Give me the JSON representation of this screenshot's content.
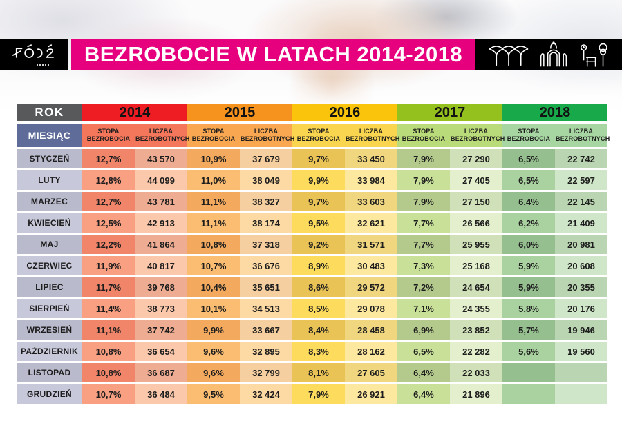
{
  "header": {
    "logo_text": "ŁÓDŹ",
    "title": "BEZROBOCIE W LATACH 2014-2018",
    "landmark_icons": [
      "station-canopy-icon",
      "gate-icon",
      "park-icon"
    ]
  },
  "colors": {
    "banner_pink": "#e6007e",
    "year_2014": "#ee1c23",
    "year_2015": "#f6921e",
    "year_2016": "#f9c40b",
    "year_2017": "#95c11f",
    "year_2018": "#18a94b",
    "rok_header_bg": "#58595b",
    "miesiac_header_bg": "#5f6c9a"
  },
  "chart_data": {
    "type": "table",
    "title": "BEZROBOCIE W LATACH 2014-2018",
    "corner_label": "ROK",
    "month_header": "MIESIĄC",
    "years": [
      "2014",
      "2015",
      "2016",
      "2017",
      "2018"
    ],
    "subcolumns": [
      "STOPA BEZROBOCIA",
      "LICZBA BEZROBOTNYCH"
    ],
    "rows": [
      {
        "month": "STYCZEŃ",
        "cells": [
          "12,7%",
          "43 570",
          "10,9%",
          "37 679",
          "9,7%",
          "33 450",
          "7,9%",
          "27 290",
          "6,5%",
          "22 742"
        ]
      },
      {
        "month": "LUTY",
        "cells": [
          "12,8%",
          "44 099",
          "11,0%",
          "38 049",
          "9,9%",
          "33 984",
          "7,9%",
          "27 405",
          "6,5%",
          "22 597"
        ]
      },
      {
        "month": "MARZEC",
        "cells": [
          "12,7%",
          "43 781",
          "11,1%",
          "38 327",
          "9,7%",
          "33 603",
          "7,9%",
          "27 150",
          "6,4%",
          "22 145"
        ]
      },
      {
        "month": "KWIECIEŃ",
        "cells": [
          "12,5%",
          "42 913",
          "11,1%",
          "38 174",
          "9,5%",
          "32 621",
          "7,7%",
          "26 566",
          "6,2%",
          "21 409"
        ]
      },
      {
        "month": "MAJ",
        "cells": [
          "12,2%",
          "41 864",
          "10,8%",
          "37 318",
          "9,2%",
          "31 571",
          "7,7%",
          "25 955",
          "6,0%",
          "20 981"
        ]
      },
      {
        "month": "CZERWIEC",
        "cells": [
          "11,9%",
          "40 817",
          "10,7%",
          "36 676",
          "8,9%",
          "30 483",
          "7,3%",
          "25 168",
          "5,9%",
          "20 608"
        ]
      },
      {
        "month": "LIPIEC",
        "cells": [
          "11,7%",
          "39 768",
          "10,4%",
          "35 651",
          "8,6%",
          "29 572",
          "7,2%",
          "24 654",
          "5,9%",
          "20 355"
        ]
      },
      {
        "month": "SIERPIEŃ",
        "cells": [
          "11,4%",
          "38 773",
          "10,1%",
          "34 513",
          "8,5%",
          "29 078",
          "7,1%",
          "24 355",
          "5,8%",
          "20 176"
        ]
      },
      {
        "month": "WRZESIEŃ",
        "cells": [
          "11,1%",
          "37 742",
          "9,9%",
          "33 667",
          "8,4%",
          "28 458",
          "6,9%",
          "23 852",
          "5,7%",
          "19 946"
        ]
      },
      {
        "month": "PAŹDZIERNIK",
        "cells": [
          "10,8%",
          "36 654",
          "9,6%",
          "32 895",
          "8,3%",
          "28 162",
          "6,5%",
          "22 282",
          "5,6%",
          "19 560"
        ]
      },
      {
        "month": "LISTOPAD",
        "cells": [
          "10,8%",
          "36 687",
          "9,6%",
          "32 799",
          "8,1%",
          "27 605",
          "6,4%",
          "22 033",
          "",
          ""
        ]
      },
      {
        "month": "GRUDZIEŃ",
        "cells": [
          "10,7%",
          "36 484",
          "9,5%",
          "32 424",
          "7,9%",
          "26 921",
          "6,4%",
          "21 896",
          "",
          ""
        ]
      }
    ]
  }
}
